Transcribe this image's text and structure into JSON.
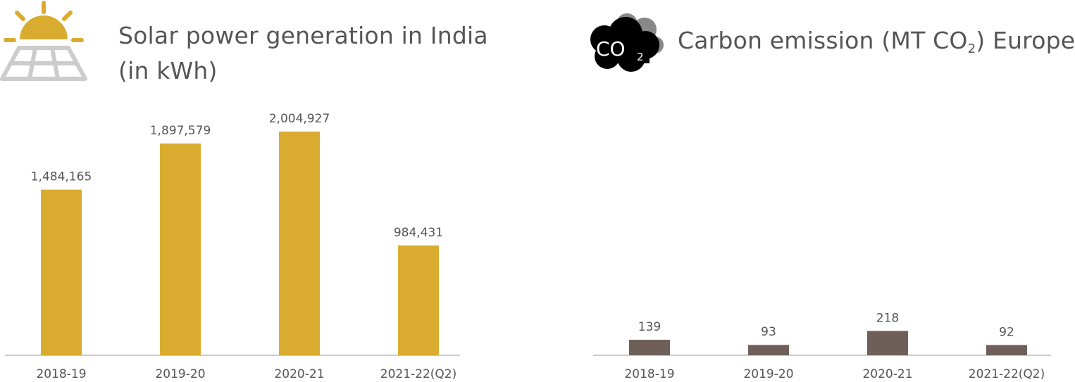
{
  "left": {
    "title": "Solar power generation in India (in kWh)",
    "icon": "solar-panel-sun-icon",
    "colors": {
      "bar": "#d9ac2f",
      "icon": "#d9ac2f",
      "panel": "#cccccc",
      "axis": "#cccccc"
    }
  },
  "right": {
    "title_main": "Carbon emission (MT CO",
    "title_sub": "2",
    "title_end": ") Europe",
    "icon": "co2-cloud-icon",
    "icon_text": "CO",
    "icon_sub": "2",
    "colors": {
      "bar": "#6e6059",
      "icon": "#000000",
      "cloud_back": "#888888",
      "axis": "#cccccc"
    }
  },
  "chart_data": [
    {
      "type": "bar",
      "title": "Solar power generation in India (in kWh)",
      "categories": [
        "2018-19",
        "2019-20",
        "2020-21",
        "2021-22(Q2)"
      ],
      "values": [
        1484165,
        1897579,
        2004927,
        984431
      ],
      "value_labels": [
        "1,484,165",
        "1,897,579",
        "2,004,927",
        "984,431"
      ],
      "ylim": [
        0,
        2150000
      ],
      "grid": false,
      "legend": "none"
    },
    {
      "type": "bar",
      "title": "Carbon emission (MT CO2) Europe",
      "categories": [
        "2018-19",
        "2019-20",
        "2020-21",
        "2021-22(Q2)"
      ],
      "values": [
        139,
        93,
        218,
        92
      ],
      "value_labels": [
        "139",
        "93",
        "218",
        "92"
      ],
      "ylim": [
        0,
        2150
      ],
      "grid": false,
      "legend": "none"
    }
  ]
}
